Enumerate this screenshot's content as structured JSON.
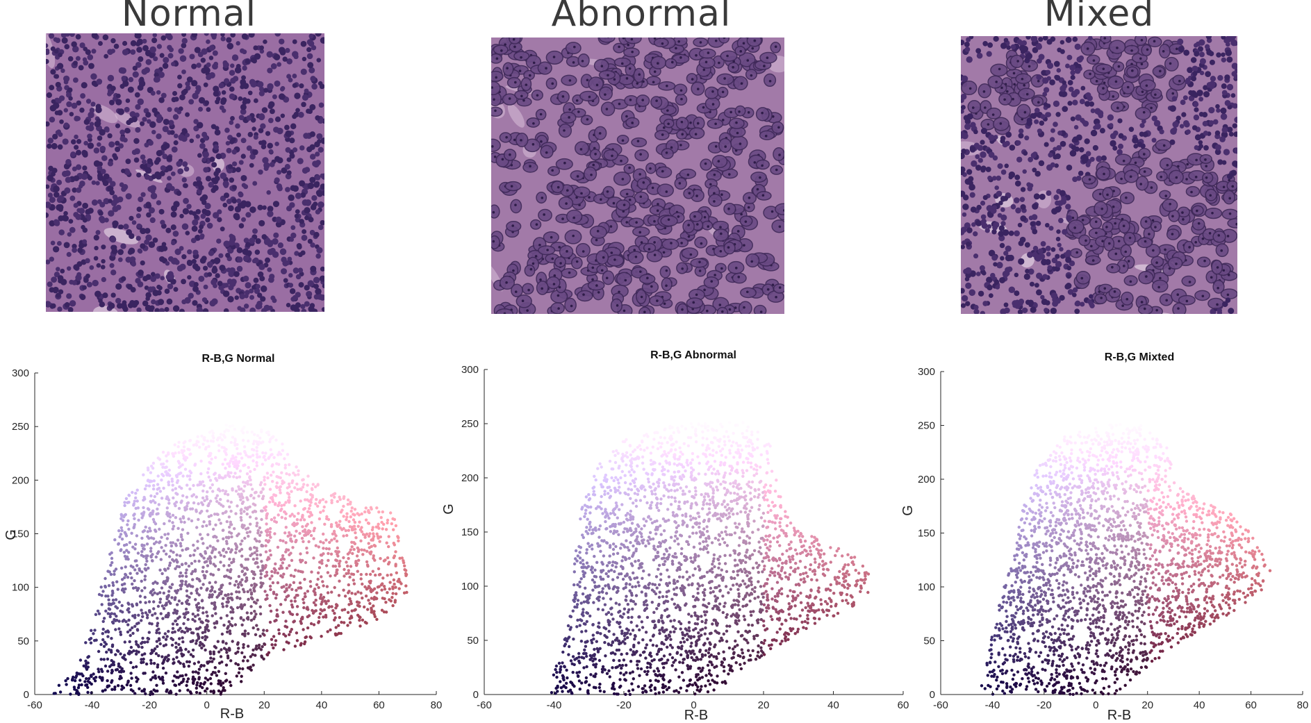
{
  "panels": [
    {
      "title": "Normal"
    },
    {
      "title": "Abnormal"
    },
    {
      "title": "Mixed"
    }
  ],
  "colors": {
    "nucleus": "#3a2460",
    "cytoplasm": "#8a5a94",
    "stroma": "#b07fae",
    "background": "#ffffff",
    "axis": "#262626"
  },
  "chart_data": [
    {
      "type": "scatter",
      "title": "R-B,G Normal",
      "xlabel": "R-B",
      "ylabel": "G",
      "xlim": [
        -60,
        80
      ],
      "ylim": [
        0,
        300
      ],
      "xticks": [
        -60,
        -40,
        -20,
        0,
        20,
        40,
        60,
        80
      ],
      "yticks": [
        0,
        50,
        100,
        150,
        200,
        250,
        300
      ],
      "grid": false,
      "color_encoding": "each point drawn in its own pixel RGB color",
      "envelope": [
        [
          -57,
          0
        ],
        [
          -46,
          20
        ],
        [
          -41,
          60
        ],
        [
          -37,
          100
        ],
        [
          -32,
          150
        ],
        [
          -28,
          185
        ],
        [
          -20,
          215
        ],
        [
          -10,
          238
        ],
        [
          5,
          252
        ],
        [
          20,
          248
        ],
        [
          28,
          232
        ],
        [
          30,
          215
        ],
        [
          40,
          195
        ],
        [
          55,
          180
        ],
        [
          65,
          170
        ],
        [
          70,
          115
        ],
        [
          70,
          95
        ],
        [
          60,
          70
        ],
        [
          45,
          55
        ],
        [
          32,
          45
        ],
        [
          18,
          30
        ],
        [
          8,
          0
        ]
      ]
    },
    {
      "type": "scatter",
      "title": "R-B,G Abnormal",
      "xlabel": "R-B",
      "ylabel": "G",
      "xlim": [
        -60,
        60
      ],
      "ylim": [
        0,
        300
      ],
      "xticks": [
        -60,
        -40,
        -20,
        0,
        20,
        40,
        60
      ],
      "yticks": [
        0,
        50,
        100,
        150,
        200,
        250,
        300
      ],
      "grid": false,
      "color_encoding": "each point drawn in its own pixel RGB color",
      "envelope": [
        [
          -42,
          0
        ],
        [
          -38,
          40
        ],
        [
          -35,
          80
        ],
        [
          -34,
          130
        ],
        [
          -32,
          175
        ],
        [
          -28,
          210
        ],
        [
          -20,
          235
        ],
        [
          -5,
          250
        ],
        [
          15,
          252
        ],
        [
          22,
          235
        ],
        [
          24,
          190
        ],
        [
          28,
          160
        ],
        [
          38,
          140
        ],
        [
          48,
          125
        ],
        [
          52,
          100
        ],
        [
          45,
          80
        ],
        [
          32,
          60
        ],
        [
          22,
          40
        ],
        [
          14,
          22
        ],
        [
          6,
          0
        ]
      ]
    },
    {
      "type": "scatter",
      "title": "R-B,G Mixted",
      "xlabel": "R-B",
      "ylabel": "G",
      "xlim": [
        -60,
        80
      ],
      "ylim": [
        0,
        300
      ],
      "xticks": [
        -60,
        -40,
        -20,
        0,
        20,
        40,
        60,
        80
      ],
      "yticks": [
        0,
        50,
        100,
        150,
        200,
        250,
        300
      ],
      "grid": false,
      "color_encoding": "each point drawn in its own pixel RGB color",
      "envelope": [
        [
          -46,
          0
        ],
        [
          -42,
          40
        ],
        [
          -38,
          80
        ],
        [
          -33,
          120
        ],
        [
          -28,
          175
        ],
        [
          -22,
          215
        ],
        [
          -12,
          240
        ],
        [
          5,
          252
        ],
        [
          18,
          250
        ],
        [
          28,
          230
        ],
        [
          30,
          200
        ],
        [
          40,
          180
        ],
        [
          55,
          170
        ],
        [
          62,
          140
        ],
        [
          68,
          120
        ],
        [
          66,
          100
        ],
        [
          52,
          75
        ],
        [
          35,
          50
        ],
        [
          22,
          30
        ],
        [
          12,
          10
        ],
        [
          8,
          0
        ]
      ]
    }
  ]
}
